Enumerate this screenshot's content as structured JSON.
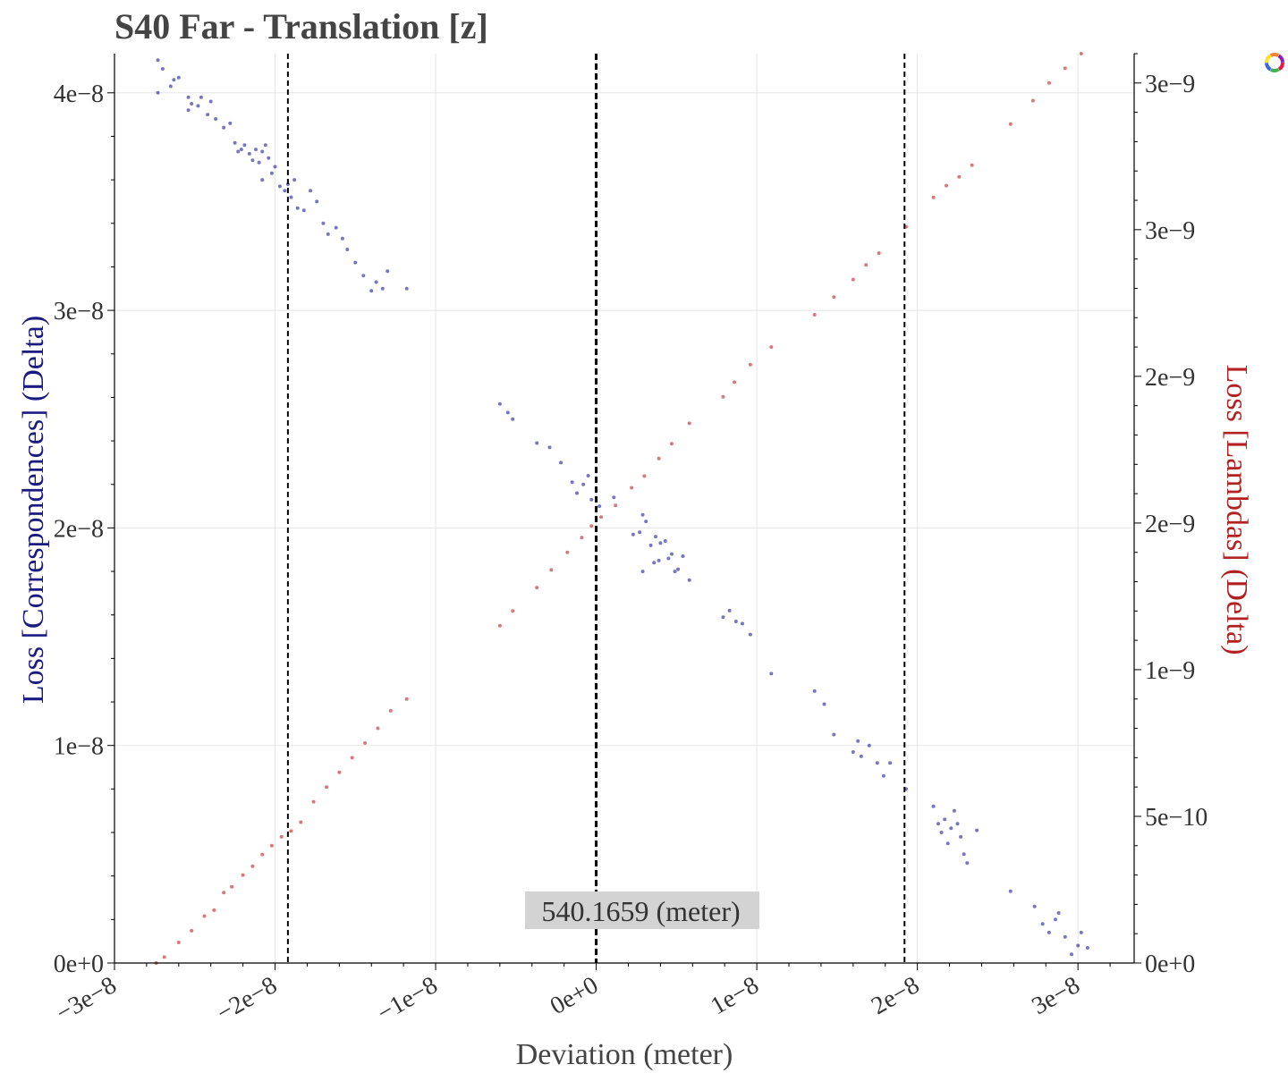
{
  "chart_data": {
    "type": "scatter",
    "title": "S40 Far - Translation [z]",
    "xlabel": "Deviation (meter)",
    "ylabel_left": "Loss [Correspondences] (Delta)",
    "ylabel_right": "Loss [Lambdas] (Delta)",
    "xlim": [
      -3e-08,
      3.35e-08
    ],
    "ylim_left": [
      0,
      4.18e-08
    ],
    "ylim_right": [
      0,
      3.1e-09
    ],
    "x_ticks": [
      {
        "value": -3e-08,
        "label": "−3e−8"
      },
      {
        "value": -2e-08,
        "label": "−2e−8"
      },
      {
        "value": -1e-08,
        "label": "−1e−8"
      },
      {
        "value": 0,
        "label": "0e+0"
      },
      {
        "value": 1e-08,
        "label": "1e−8"
      },
      {
        "value": 2e-08,
        "label": "2e−8"
      },
      {
        "value": 3e-08,
        "label": "3e−8"
      }
    ],
    "y_left_ticks": [
      {
        "value": 0,
        "label": "0e+0"
      },
      {
        "value": 1e-08,
        "label": "1e−8"
      },
      {
        "value": 2e-08,
        "label": "2e−8"
      },
      {
        "value": 3e-08,
        "label": "3e−8"
      },
      {
        "value": 4e-08,
        "label": "4e−8"
      }
    ],
    "y_right_ticks": [
      {
        "value": 0,
        "label": "0e+0"
      },
      {
        "value": 5e-10,
        "label": "5e−10"
      },
      {
        "value": 1e-09,
        "label": "1e−9"
      },
      {
        "value": 1.5e-09,
        "label": "2e−9"
      },
      {
        "value": 2e-09,
        "label": "2e−9"
      },
      {
        "value": 2.5e-09,
        "label": "3e−9"
      },
      {
        "value": 3e-09,
        "label": "3e−9"
      }
    ],
    "grid": true,
    "vlines": [
      {
        "x": -1.92e-08,
        "style": "dashed"
      },
      {
        "x": 0,
        "style": "dashed-bold"
      },
      {
        "x": 1.92e-08,
        "style": "dashed"
      }
    ],
    "annotation": {
      "text": "540.1659 (meter)",
      "x": 0
    },
    "colors": {
      "left_series": "#1a1a99",
      "right_series": "#c02020",
      "left_label": "#1a1a80",
      "right_label": "#b22222"
    },
    "series": [
      {
        "axis": "left",
        "points": [
          [
            -2.73e-08,
            4.15e-08
          ],
          [
            -2.7e-08,
            4.11e-08
          ],
          [
            -2.73e-08,
            4e-08
          ],
          [
            -2.63e-08,
            4.06e-08
          ],
          [
            -2.6e-08,
            4.07e-08
          ],
          [
            -2.65e-08,
            4.03e-08
          ],
          [
            -2.54e-08,
            3.98e-08
          ],
          [
            -2.52e-08,
            3.95e-08
          ],
          [
            -2.54e-08,
            3.92e-08
          ],
          [
            -2.48e-08,
            3.94e-08
          ],
          [
            -2.46e-08,
            3.98e-08
          ],
          [
            -2.4e-08,
            3.96e-08
          ],
          [
            -2.42e-08,
            3.9e-08
          ],
          [
            -2.37e-08,
            3.88e-08
          ],
          [
            -2.32e-08,
            3.84e-08
          ],
          [
            -2.28e-08,
            3.86e-08
          ],
          [
            -2.25e-08,
            3.77e-08
          ],
          [
            -2.23e-08,
            3.73e-08
          ],
          [
            -2.21e-08,
            3.74e-08
          ],
          [
            -2.19e-08,
            3.76e-08
          ],
          [
            -2.16e-08,
            3.72e-08
          ],
          [
            -2.14e-08,
            3.69e-08
          ],
          [
            -2.12e-08,
            3.74e-08
          ],
          [
            -2.1e-08,
            3.68e-08
          ],
          [
            -2.08e-08,
            3.73e-08
          ],
          [
            -2.06e-08,
            3.76e-08
          ],
          [
            -2.04e-08,
            3.7e-08
          ],
          [
            -2.02e-08,
            3.63e-08
          ],
          [
            -2.08e-08,
            3.6e-08
          ],
          [
            -2e-08,
            3.66e-08
          ],
          [
            -1.97e-08,
            3.57e-08
          ],
          [
            -1.94e-08,
            3.55e-08
          ],
          [
            -1.92e-08,
            3.58e-08
          ],
          [
            -1.9e-08,
            3.52e-08
          ],
          [
            -1.88e-08,
            3.6e-08
          ],
          [
            -1.86e-08,
            3.47e-08
          ],
          [
            -1.82e-08,
            3.46e-08
          ],
          [
            -1.78e-08,
            3.55e-08
          ],
          [
            -1.74e-08,
            3.5e-08
          ],
          [
            -1.7e-08,
            3.4e-08
          ],
          [
            -1.67e-08,
            3.35e-08
          ],
          [
            -1.62e-08,
            3.38e-08
          ],
          [
            -1.58e-08,
            3.33e-08
          ],
          [
            -1.55e-08,
            3.28e-08
          ],
          [
            -1.5e-08,
            3.22e-08
          ],
          [
            -1.45e-08,
            3.16e-08
          ],
          [
            -1.4e-08,
            3.09e-08
          ],
          [
            -1.37e-08,
            3.13e-08
          ],
          [
            -1.33e-08,
            3.1e-08
          ],
          [
            -1.3e-08,
            3.18e-08
          ],
          [
            -1.18e-08,
            3.1e-08
          ],
          [
            -6e-09,
            2.57e-08
          ],
          [
            -5.5e-09,
            2.53e-08
          ],
          [
            -5.2e-09,
            2.5e-08
          ],
          [
            -3.7e-09,
            2.39e-08
          ],
          [
            -2.9e-09,
            2.37e-08
          ],
          [
            -2.2e-09,
            2.3e-08
          ],
          [
            -1.5e-09,
            2.21e-08
          ],
          [
            -1.2e-09,
            2.16e-08
          ],
          [
            -8e-10,
            2.2e-08
          ],
          [
            -5e-10,
            2.24e-08
          ],
          [
            -3e-10,
            2.13e-08
          ],
          [
            2e-10,
            2.1e-08
          ],
          [
            1.1e-09,
            2.14e-08
          ],
          [
            2.3e-09,
            1.97e-08
          ],
          [
            2.7e-09,
            1.98e-08
          ],
          [
            2.9e-09,
            2.06e-08
          ],
          [
            3.1e-09,
            2.03e-08
          ],
          [
            3.4e-09,
            1.92e-08
          ],
          [
            3.7e-09,
            1.96e-08
          ],
          [
            3.9e-09,
            1.85e-08
          ],
          [
            4e-09,
            1.93e-08
          ],
          [
            4.3e-09,
            1.94e-08
          ],
          [
            4.5e-09,
            1.86e-08
          ],
          [
            4.7e-09,
            1.88e-08
          ],
          [
            4.9e-09,
            1.8e-08
          ],
          [
            5.1e-09,
            1.81e-08
          ],
          [
            5.4e-09,
            1.87e-08
          ],
          [
            5.8e-09,
            1.76e-08
          ],
          [
            2.9e-09,
            1.8e-08
          ],
          [
            3.6e-09,
            1.84e-08
          ],
          [
            7.9e-09,
            1.59e-08
          ],
          [
            8.3e-09,
            1.62e-08
          ],
          [
            8.7e-09,
            1.57e-08
          ],
          [
            9.1e-09,
            1.56e-08
          ],
          [
            9.6e-09,
            1.51e-08
          ],
          [
            1.09e-08,
            1.33e-08
          ],
          [
            1.36e-08,
            1.25e-08
          ],
          [
            1.42e-08,
            1.19e-08
          ],
          [
            1.48e-08,
            1.05e-08
          ],
          [
            1.6e-08,
            9.7e-09
          ],
          [
            1.63e-08,
            1.02e-08
          ],
          [
            1.65e-08,
            9.5e-09
          ],
          [
            1.7e-08,
            1e-08
          ],
          [
            1.75e-08,
            9.2e-09
          ],
          [
            1.79e-08,
            8.6e-09
          ],
          [
            1.83e-08,
            9.2e-09
          ],
          [
            1.93e-08,
            8e-09
          ],
          [
            2.1e-08,
            7.2e-09
          ],
          [
            2.13e-08,
            6.4e-09
          ],
          [
            2.15e-08,
            6e-09
          ],
          [
            2.17e-08,
            6.6e-09
          ],
          [
            2.19e-08,
            5.5e-09
          ],
          [
            2.21e-08,
            6.2e-09
          ],
          [
            2.23e-08,
            7e-09
          ],
          [
            2.25e-08,
            6.4e-09
          ],
          [
            2.27e-08,
            5.8e-09
          ],
          [
            2.29e-08,
            5e-09
          ],
          [
            2.31e-08,
            4.6e-09
          ],
          [
            2.37e-08,
            6.1e-09
          ],
          [
            2.58e-08,
            3.3e-09
          ],
          [
            2.73e-08,
            2.6e-09
          ],
          [
            2.78e-08,
            1.8e-09
          ],
          [
            2.82e-08,
            1.4e-09
          ],
          [
            2.86e-08,
            2e-09
          ],
          [
            2.88e-08,
            2.3e-09
          ],
          [
            2.92e-08,
            1.2e-09
          ],
          [
            2.96e-08,
            4e-10
          ],
          [
            3e-08,
            8e-10
          ],
          [
            3.02e-08,
            1.4e-09
          ],
          [
            3.06e-08,
            7e-10
          ]
        ]
      },
      {
        "axis": "right",
        "points": [
          [
            -2.74e-08,
            0.0
          ],
          [
            -2.69e-08,
            2e-11
          ],
          [
            -2.6e-08,
            7e-11
          ],
          [
            -2.52e-08,
            1.1e-10
          ],
          [
            -2.44e-08,
            1.6e-10
          ],
          [
            -2.38e-08,
            1.8e-10
          ],
          [
            -2.32e-08,
            2.4e-10
          ],
          [
            -2.27e-08,
            2.6e-10
          ],
          [
            -2.2e-08,
            3e-10
          ],
          [
            -2.14e-08,
            3.3e-10
          ],
          [
            -2.08e-08,
            3.7e-10
          ],
          [
            -2.02e-08,
            4e-10
          ],
          [
            -1.96e-08,
            4.3e-10
          ],
          [
            -1.9e-08,
            4.5e-10
          ],
          [
            -1.84e-08,
            4.8e-10
          ],
          [
            -1.76e-08,
            5.5e-10
          ],
          [
            -1.68e-08,
            6e-10
          ],
          [
            -1.6e-08,
            6.5e-10
          ],
          [
            -1.52e-08,
            7e-10
          ],
          [
            -1.44e-08,
            7.5e-10
          ],
          [
            -1.36e-08,
            8e-10
          ],
          [
            -1.28e-08,
            8.6e-10
          ],
          [
            -1.18e-08,
            9e-10
          ],
          [
            -6e-09,
            1.15e-09
          ],
          [
            -5.2e-09,
            1.2e-09
          ],
          [
            -3.7e-09,
            1.28e-09
          ],
          [
            -2.8e-09,
            1.34e-09
          ],
          [
            -1.8e-09,
            1.4e-09
          ],
          [
            -9e-10,
            1.45e-09
          ],
          [
            -3e-10,
            1.49e-09
          ],
          [
            3e-10,
            1.52e-09
          ],
          [
            1.2e-09,
            1.56e-09
          ],
          [
            2.2e-09,
            1.62e-09
          ],
          [
            3e-09,
            1.66e-09
          ],
          [
            3.9e-09,
            1.72e-09
          ],
          [
            4.7e-09,
            1.77e-09
          ],
          [
            5.8e-09,
            1.84e-09
          ],
          [
            7.9e-09,
            1.93e-09
          ],
          [
            8.6e-09,
            1.98e-09
          ],
          [
            9.6e-09,
            2.04e-09
          ],
          [
            1.09e-08,
            2.1e-09
          ],
          [
            1.36e-08,
            2.21e-09
          ],
          [
            1.48e-08,
            2.27e-09
          ],
          [
            1.6e-08,
            2.33e-09
          ],
          [
            1.68e-08,
            2.38e-09
          ],
          [
            1.76e-08,
            2.42e-09
          ],
          [
            1.93e-08,
            2.51e-09
          ],
          [
            2.1e-08,
            2.61e-09
          ],
          [
            2.18e-08,
            2.65e-09
          ],
          [
            2.26e-08,
            2.68e-09
          ],
          [
            2.34e-08,
            2.72e-09
          ],
          [
            2.58e-08,
            2.86e-09
          ],
          [
            2.72e-08,
            2.94e-09
          ],
          [
            2.82e-08,
            3e-09
          ],
          [
            2.92e-08,
            3.05e-09
          ],
          [
            3.02e-08,
            3.1e-09
          ]
        ]
      }
    ]
  }
}
